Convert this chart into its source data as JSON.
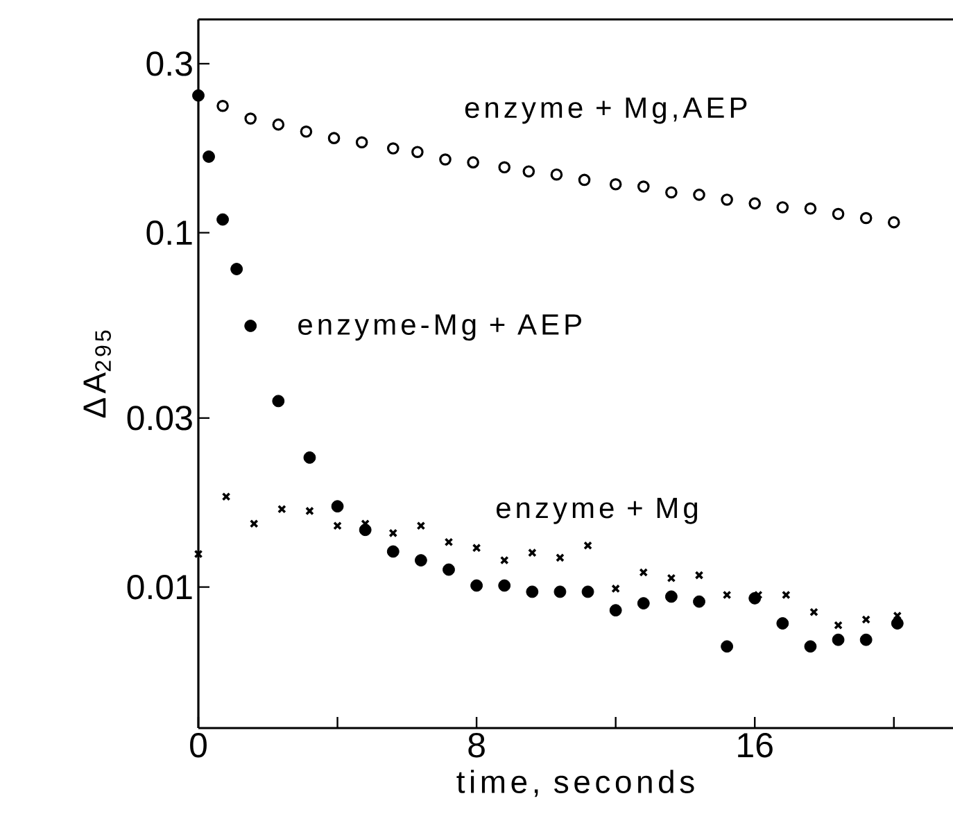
{
  "chart_data": {
    "type": "scatter",
    "xlabel": "time, seconds",
    "ylabel": "ΔA$_{295}$",
    "log": "y",
    "xlim": [
      0,
      21.7
    ],
    "ylim": [
      0.004,
      0.4
    ],
    "xticks": [
      0,
      {
        "value": 4,
        "label": null
      },
      8,
      {
        "value": 12,
        "label": null
      },
      16,
      {
        "value": 20,
        "label": null
      }
    ],
    "yticks": [
      0.01,
      0.03,
      0.1,
      0.3
    ],
    "legend": false,
    "grid": false,
    "series": [
      {
        "name": "enzyme + Mg,AEP",
        "color": "#000000",
        "marker": "circle",
        "x": [
          0.7,
          1.5,
          2.3,
          3.1,
          3.9,
          4.7,
          5.6,
          6.3,
          7.1,
          7.9,
          8.8,
          9.5,
          10.3,
          11.1,
          12.0,
          12.8,
          13.6,
          14.4,
          15.2,
          16.0,
          16.8,
          17.6,
          18.4,
          19.2,
          20.0
        ],
        "values": [
          0.228,
          0.21,
          0.202,
          0.193,
          0.185,
          0.18,
          0.173,
          0.169,
          0.161,
          0.158,
          0.153,
          0.149,
          0.146,
          0.141,
          0.137,
          0.135,
          0.13,
          0.128,
          0.124,
          0.121,
          0.118,
          0.117,
          0.113,
          0.11,
          0.107
        ]
      },
      {
        "name": "enzyme-Mg + AEP",
        "color": "#000000",
        "marker": "circle",
        "x": [
          0,
          0.3,
          0.7,
          1.1,
          1.5,
          2.3,
          3.2,
          4.0,
          4.8,
          5.6,
          6.4,
          7.2,
          8.0,
          8.8,
          9.6,
          10.4,
          11.2,
          12.0,
          12.8,
          13.6,
          14.4,
          15.2,
          16.0,
          16.8,
          17.6,
          18.4,
          19.2,
          20.1
        ],
        "values": [
          0.244,
          0.164,
          0.109,
          0.079,
          0.0546,
          0.0335,
          0.0232,
          0.0169,
          0.0145,
          0.0126,
          0.0119,
          0.0112,
          0.0101,
          0.0101,
          0.0097,
          0.0097,
          0.0097,
          0.0086,
          0.009,
          0.0094,
          0.0091,
          0.0068,
          0.0093,
          0.0079,
          0.0068,
          0.0071,
          0.0071,
          0.0079
        ]
      },
      {
        "name": "enzyme + Mg",
        "color": "#000000",
        "marker": "cross",
        "x": [
          0,
          0.8,
          1.6,
          2.4,
          3.2,
          4.0,
          4.8,
          5.6,
          6.4,
          7.2,
          8.0,
          8.8,
          9.6,
          10.4,
          11.2,
          12.0,
          12.8,
          13.6,
          14.4,
          15.2,
          16.1,
          16.9,
          17.7,
          18.4,
          19.2,
          20.1
        ],
        "values": [
          0.0124,
          0.018,
          0.0151,
          0.0166,
          0.0164,
          0.0149,
          0.0151,
          0.0142,
          0.0149,
          0.0134,
          0.0129,
          0.0119,
          0.0125,
          0.0121,
          0.0131,
          0.0099,
          0.011,
          0.0106,
          0.0108,
          0.0095,
          0.0095,
          0.0095,
          0.0085,
          0.0078,
          0.0081,
          0.0083
        ]
      }
    ]
  }
}
